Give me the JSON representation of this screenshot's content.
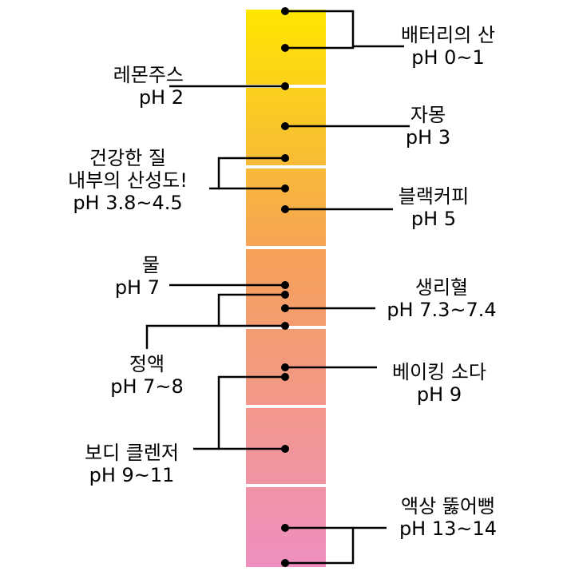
{
  "colors": {
    "top": "#FFE600",
    "mid": "#F5A05A",
    "bottom": "#EE8FC0",
    "line": "#000000",
    "divider": "#FFFFFF"
  },
  "labels": {
    "battery_acid": {
      "name": "배터리의 산",
      "ph": "pH 0~1"
    },
    "lemon_juice": {
      "name": "레몬주스",
      "ph": "pH 2"
    },
    "grapefruit": {
      "name": "자몽",
      "ph": "pH 3"
    },
    "vagina": {
      "line1": "건강한 질",
      "line2": "내부의 산성도!",
      "ph": "pH 3.8~4.5"
    },
    "black_coffee": {
      "name": "블랙커피",
      "ph": "pH 5"
    },
    "water": {
      "name": "물",
      "ph": "pH 7"
    },
    "blood": {
      "name": "생리혈",
      "ph": "pH 7.3~7.4"
    },
    "semen": {
      "name": "정액",
      "ph": "pH 7~8"
    },
    "baking_soda": {
      "name": "베이킹 소다",
      "ph": "pH 9"
    },
    "body_cleanser": {
      "name": "보디 클렌저",
      "ph": "pH 9~11"
    },
    "drain_cleaner": {
      "name": "액상 뚫어뻥",
      "ph": "pH 13~14"
    }
  }
}
